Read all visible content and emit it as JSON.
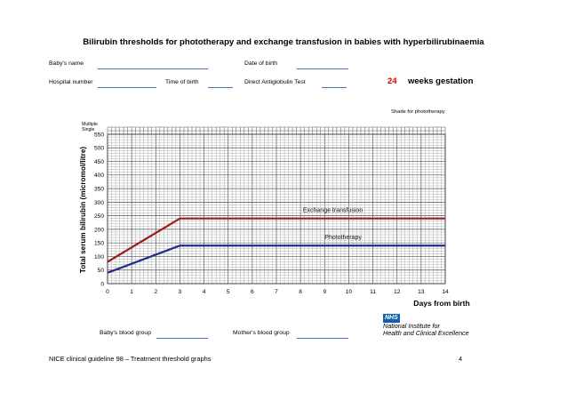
{
  "header": {
    "title": "Bilirubin thresholds for phototherapy and exchange transfusion in babies with hyperbilirubinaemia"
  },
  "form": {
    "babys_name": "Baby's name",
    "date_of_birth": "Date of birth",
    "hospital_number": "Hospital number",
    "time_of_birth": "Time of birth",
    "dat": "Direct Antiglobulin Test",
    "gestation_weeks": "24",
    "gestation_label": "weeks gestation",
    "babys_blood_group": "Baby's blood group",
    "mothers_blood_group": "Mother's blood group"
  },
  "shade_note": "Shade for phototherapy",
  "legend_small": {
    "multiple": "Multiple",
    "single": "Single"
  },
  "chart_data": {
    "type": "line",
    "xlabel": "Days from birth",
    "ylabel": "Total serum bilirubin  (micromol/litre)",
    "xlim": [
      0,
      14
    ],
    "ylim": [
      0,
      550
    ],
    "xticks": [
      0,
      1,
      2,
      3,
      4,
      5,
      6,
      7,
      8,
      9,
      10,
      11,
      12,
      13,
      14
    ],
    "yticks": [
      0,
      50,
      100,
      150,
      200,
      250,
      300,
      350,
      400,
      450,
      500,
      550
    ],
    "grid": true,
    "series": [
      {
        "name": "Exchange transfusion",
        "color": "#9b1c1c",
        "x": [
          0,
          3,
          14
        ],
        "y": [
          80,
          240,
          240
        ]
      },
      {
        "name": "Phototherapy",
        "color": "#1f2a8a",
        "x": [
          0,
          3,
          14
        ],
        "y": [
          40,
          140,
          140
        ]
      }
    ]
  },
  "footer": {
    "left": "NICE clinical guideline 98 – Treatment threshold graphs",
    "page": "4"
  },
  "logo": {
    "nhs": "NHS",
    "line1": "National Institute for",
    "line2": "Health and Clinical Excellence"
  }
}
